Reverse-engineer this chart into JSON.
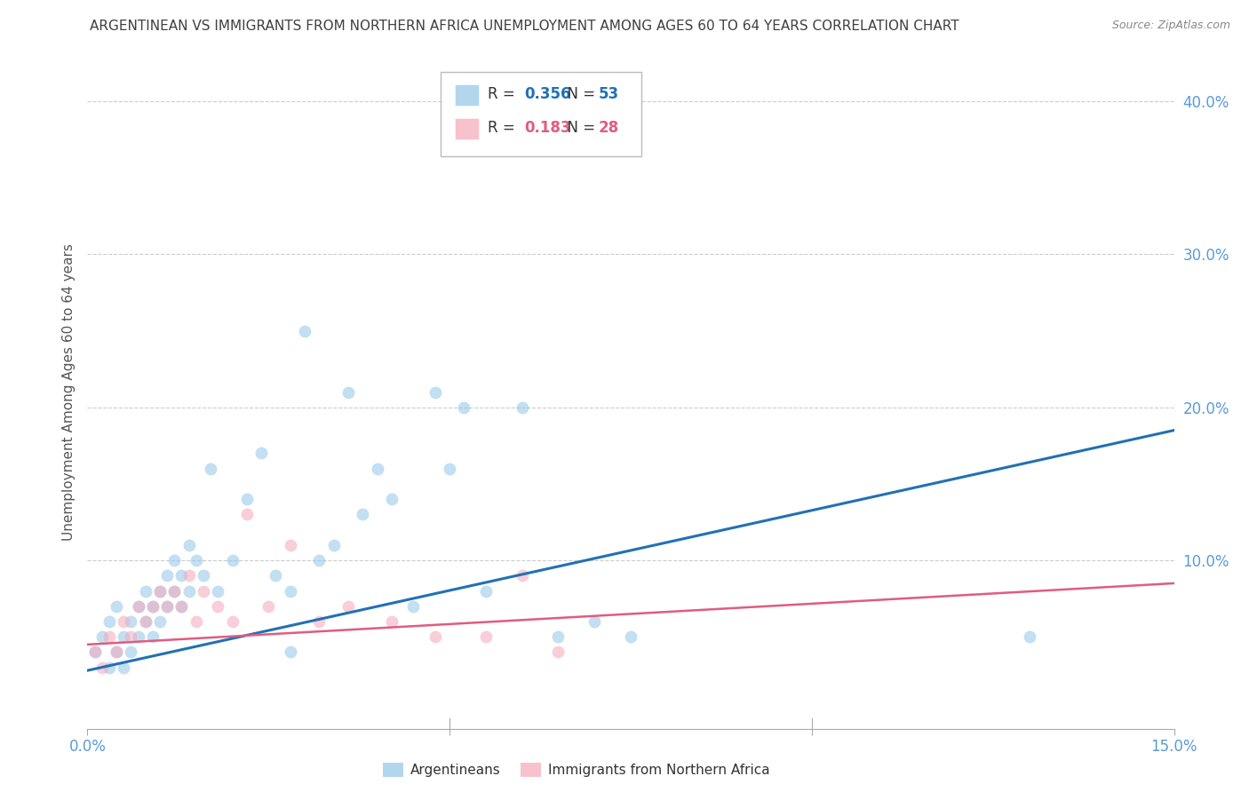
{
  "title": "ARGENTINEAN VS IMMIGRANTS FROM NORTHERN AFRICA UNEMPLOYMENT AMONG AGES 60 TO 64 YEARS CORRELATION CHART",
  "source": "Source: ZipAtlas.com",
  "ylabel": "Unemployment Among Ages 60 to 64 years",
  "xlim": [
    0.0,
    0.15
  ],
  "ylim": [
    -0.01,
    0.43
  ],
  "xticks": [
    0.0,
    0.05,
    0.1,
    0.15
  ],
  "xticklabels": [
    "0.0%",
    "",
    "",
    "15.0%"
  ],
  "yticks": [
    0.1,
    0.2,
    0.3,
    0.4
  ],
  "yticklabels": [
    "10.0%",
    "20.0%",
    "30.0%",
    "40.0%"
  ],
  "series1_color": "#92c5e8",
  "series2_color": "#f4a9ba",
  "series1_line_color": "#2171b5",
  "series2_line_color": "#e05c80",
  "legend_R1": "0.356",
  "legend_N1": "53",
  "legend_R2": "0.183",
  "legend_N2": "28",
  "series1_label": "Argentineans",
  "series2_label": "Immigrants from Northern Africa",
  "blue_scatter_x": [
    0.001,
    0.002,
    0.003,
    0.003,
    0.004,
    0.004,
    0.005,
    0.005,
    0.006,
    0.006,
    0.007,
    0.007,
    0.008,
    0.008,
    0.009,
    0.009,
    0.01,
    0.01,
    0.011,
    0.011,
    0.012,
    0.012,
    0.013,
    0.013,
    0.014,
    0.014,
    0.015,
    0.016,
    0.017,
    0.018,
    0.02,
    0.022,
    0.024,
    0.026,
    0.028,
    0.03,
    0.032,
    0.034,
    0.036,
    0.038,
    0.04,
    0.042,
    0.045,
    0.048,
    0.05,
    0.052,
    0.055,
    0.06,
    0.065,
    0.07,
    0.075,
    0.13,
    0.028
  ],
  "blue_scatter_y": [
    0.04,
    0.05,
    0.03,
    0.06,
    0.04,
    0.07,
    0.05,
    0.03,
    0.06,
    0.04,
    0.05,
    0.07,
    0.06,
    0.08,
    0.07,
    0.05,
    0.08,
    0.06,
    0.09,
    0.07,
    0.08,
    0.1,
    0.09,
    0.07,
    0.11,
    0.08,
    0.1,
    0.09,
    0.16,
    0.08,
    0.1,
    0.14,
    0.17,
    0.09,
    0.08,
    0.25,
    0.1,
    0.11,
    0.21,
    0.13,
    0.16,
    0.14,
    0.07,
    0.21,
    0.16,
    0.2,
    0.08,
    0.2,
    0.05,
    0.06,
    0.05,
    0.05,
    0.04
  ],
  "pink_scatter_x": [
    0.001,
    0.002,
    0.003,
    0.004,
    0.005,
    0.006,
    0.007,
    0.008,
    0.009,
    0.01,
    0.011,
    0.012,
    0.013,
    0.014,
    0.015,
    0.016,
    0.018,
    0.02,
    0.022,
    0.025,
    0.028,
    0.032,
    0.036,
    0.042,
    0.048,
    0.055,
    0.06,
    0.065
  ],
  "pink_scatter_y": [
    0.04,
    0.03,
    0.05,
    0.04,
    0.06,
    0.05,
    0.07,
    0.06,
    0.07,
    0.08,
    0.07,
    0.08,
    0.07,
    0.09,
    0.06,
    0.08,
    0.07,
    0.06,
    0.13,
    0.07,
    0.11,
    0.06,
    0.07,
    0.06,
    0.05,
    0.05,
    0.09,
    0.04
  ],
  "blue_line_x": [
    0.0,
    0.15
  ],
  "blue_line_y": [
    0.028,
    0.185
  ],
  "pink_line_x": [
    0.0,
    0.15
  ],
  "pink_line_y": [
    0.045,
    0.085
  ],
  "background_color": "#ffffff",
  "grid_color": "#cccccc",
  "title_color": "#404040",
  "tick_color": "#5b9bd5",
  "marker_size": 100
}
